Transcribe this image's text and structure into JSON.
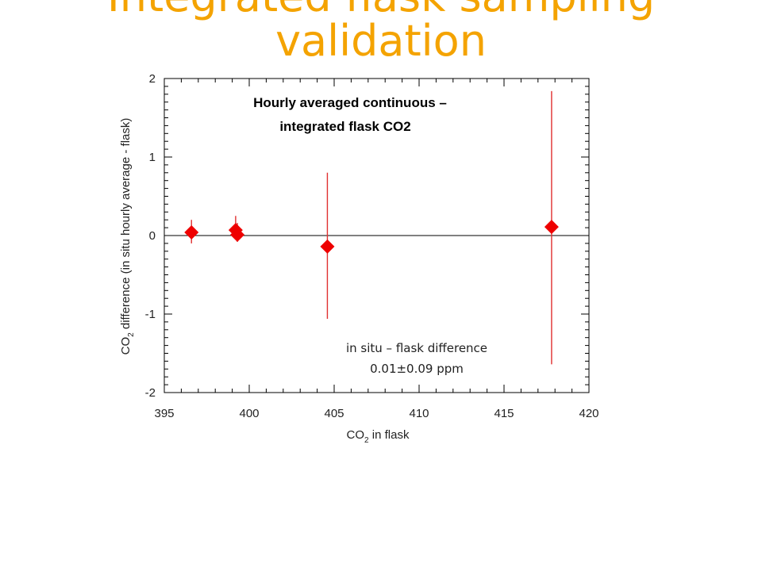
{
  "slide": {
    "title_line1": "Integrated flask sampling",
    "title_line2": "validation"
  },
  "chart_data": {
    "type": "scatter",
    "title_line1": "Hourly averaged continuous –",
    "title_line2": "integrated flask CO2",
    "xlabel_prefix": "CO",
    "xlabel_sub": "2",
    "xlabel_suffix": " in flask",
    "ylabel_prefix": "CO",
    "ylabel_sub": "2",
    "ylabel_suffix": " difference (in situ hourly average - flask)",
    "annotation_line1": "in situ – flask difference",
    "annotation_line2": "0.01±0.09 ppm",
    "xlim": [
      395,
      420
    ],
    "ylim": [
      -2,
      2
    ],
    "xticks": [
      395,
      400,
      405,
      410,
      415,
      420
    ],
    "yticks": [
      -2,
      -1,
      0,
      1,
      2
    ],
    "zero_line": true,
    "marker_color": "#ee0000",
    "errorbar_color": "#e03030",
    "points": [
      {
        "x": 396.6,
        "y": 0.04,
        "err_low": 0.14,
        "err_high": 0.16
      },
      {
        "x": 399.2,
        "y": 0.07,
        "err_low": 0.1,
        "err_high": 0.18
      },
      {
        "x": 399.3,
        "y": 0.01,
        "err_low": 0.09,
        "err_high": 0.15
      },
      {
        "x": 404.6,
        "y": -0.14,
        "err_low": 0.92,
        "err_high": 0.94
      },
      {
        "x": 417.8,
        "y": 0.11,
        "err_low": 1.75,
        "err_high": 1.73
      }
    ]
  }
}
